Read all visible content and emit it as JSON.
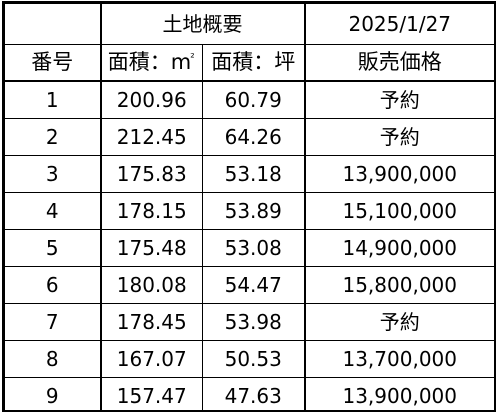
{
  "header": {
    "group_title": "土地概要",
    "date": "2025/1/27"
  },
  "columns": {
    "number": "番号",
    "area_m2_label": "面積：m",
    "area_m2_sup": "²",
    "area_tsubo": "面積：坪",
    "price": "販売価格"
  },
  "rows": [
    {
      "no": "1",
      "area_m2": "200.96",
      "area_tsubo": "60.79",
      "price": "予約"
    },
    {
      "no": "2",
      "area_m2": "212.45",
      "area_tsubo": "64.26",
      "price": "予約"
    },
    {
      "no": "3",
      "area_m2": "175.83",
      "area_tsubo": "53.18",
      "price": "13,900,000"
    },
    {
      "no": "4",
      "area_m2": "178.15",
      "area_tsubo": "53.89",
      "price": "15,100,000"
    },
    {
      "no": "5",
      "area_m2": "175.48",
      "area_tsubo": "53.08",
      "price": "14,900,000"
    },
    {
      "no": "6",
      "area_m2": "180.08",
      "area_tsubo": "54.47",
      "price": "15,800,000"
    },
    {
      "no": "7",
      "area_m2": "178.45",
      "area_tsubo": "53.98",
      "price": "予約"
    },
    {
      "no": "8",
      "area_m2": "167.07",
      "area_tsubo": "50.53",
      "price": "13,700,000"
    },
    {
      "no": "9",
      "area_m2": "157.47",
      "area_tsubo": "47.63",
      "price": "13,900,000"
    }
  ]
}
